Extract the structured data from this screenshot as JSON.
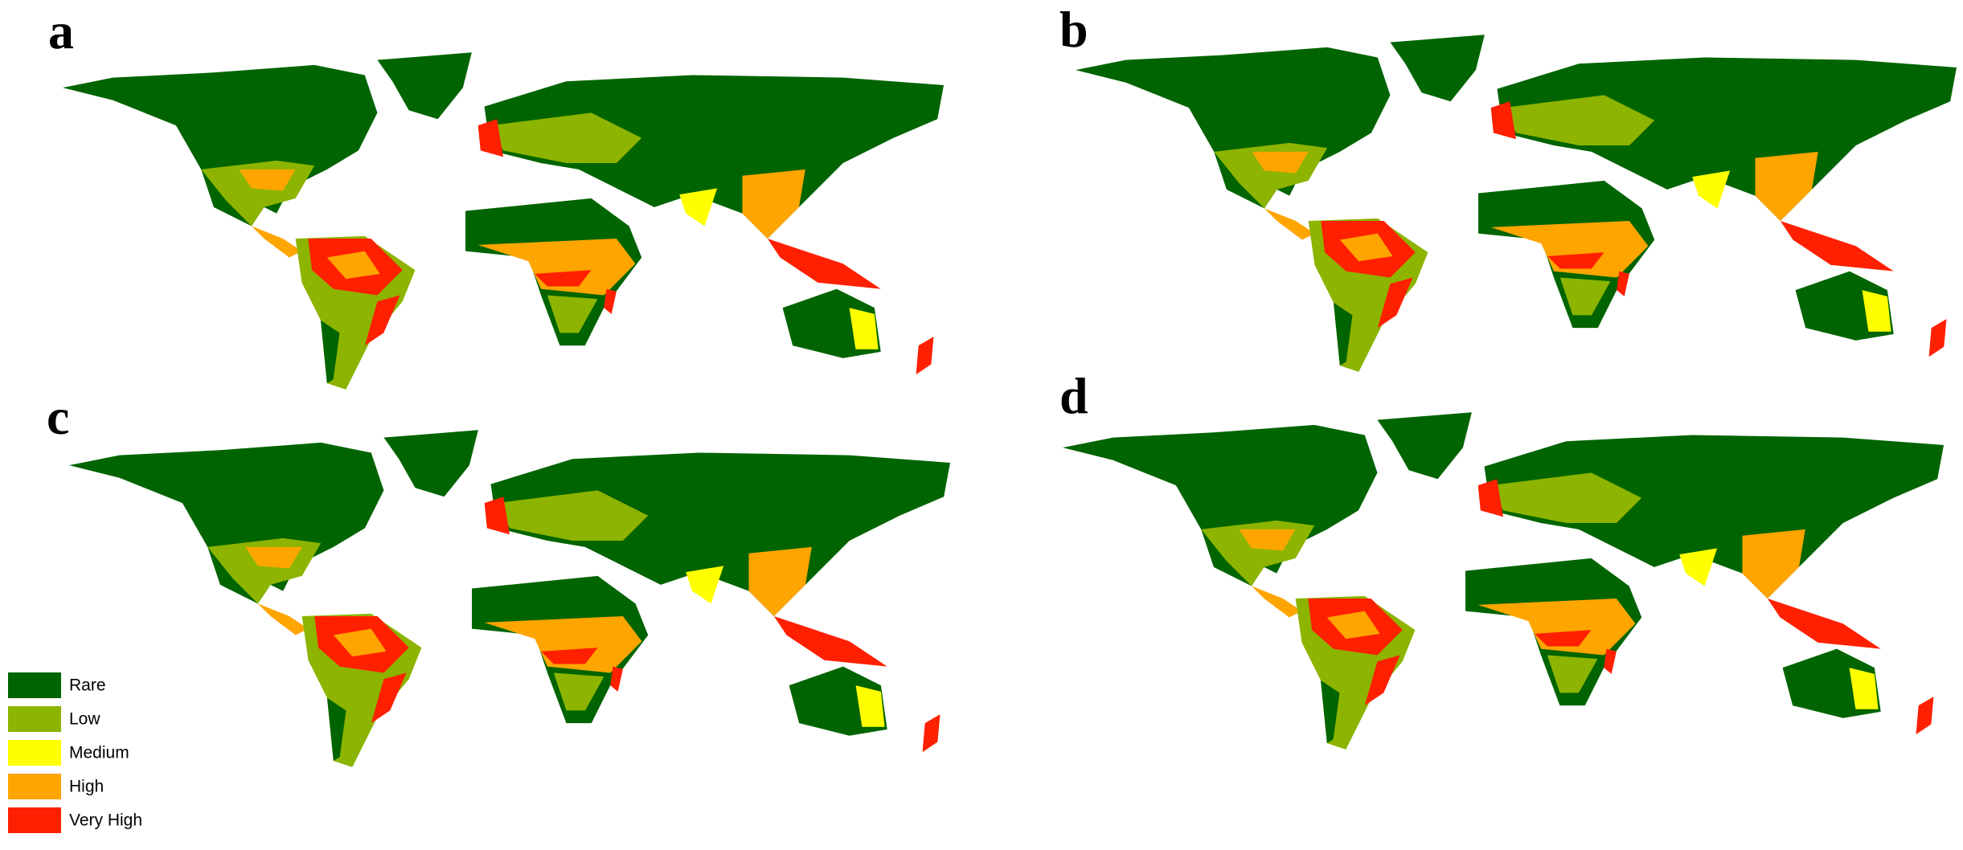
{
  "panels": [
    {
      "label": "a"
    },
    {
      "label": "b"
    },
    {
      "label": "c"
    },
    {
      "label": "d"
    }
  ],
  "legend": [
    {
      "label": "Rare",
      "color": "#006400"
    },
    {
      "label": "Low",
      "color": "#8cb400"
    },
    {
      "label": "Medium",
      "color": "#ffff00"
    },
    {
      "label": "High",
      "color": "#ffa500"
    },
    {
      "label": "Very High",
      "color": "#ff2000"
    }
  ]
}
